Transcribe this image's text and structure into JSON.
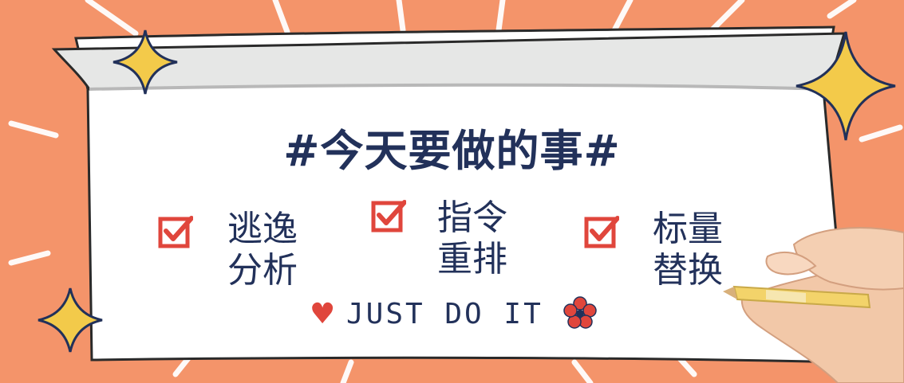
{
  "banner": {
    "title": "#今天要做的事#",
    "items": [
      {
        "line1": "逃逸",
        "line2": "分析",
        "checked": true
      },
      {
        "line1": "指令",
        "line2": "重排",
        "checked": true
      },
      {
        "line1": "标量",
        "line2": "替换",
        "checked": true
      }
    ],
    "slogan": "JUST DO IT"
  },
  "colors": {
    "background": "#f4946a",
    "accent": "#e0463c",
    "text": "#22315a",
    "star": "#f3ca4a"
  },
  "icons": [
    "sparkle-star-icon",
    "checkbox-checked-icon",
    "heart-icon",
    "flower-icon",
    "hand-holding-pencil-image"
  ]
}
